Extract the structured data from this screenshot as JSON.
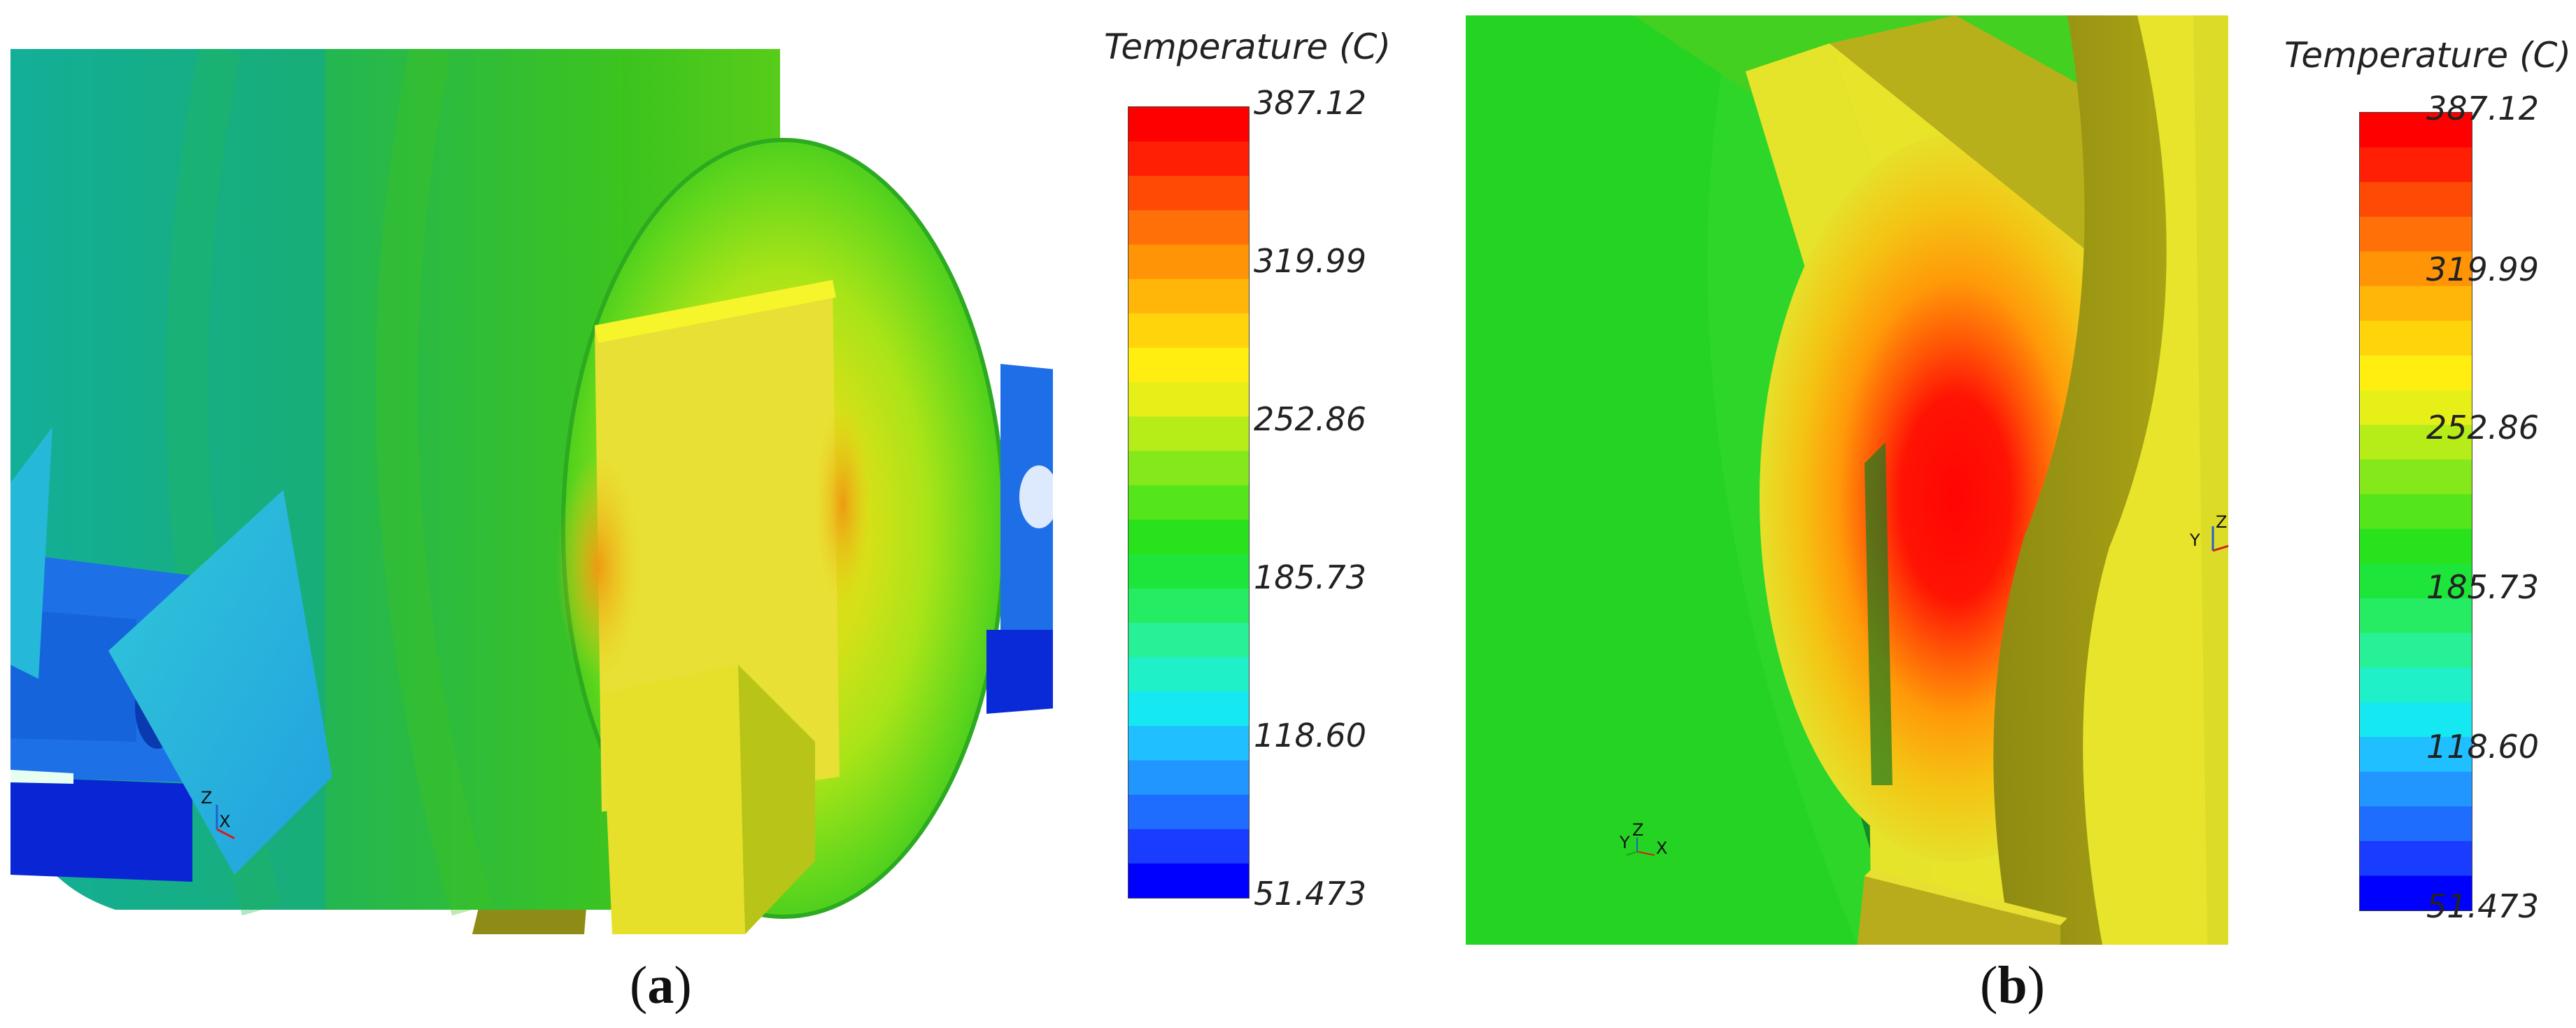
{
  "panels": [
    {
      "caption_letter": "a",
      "colorbar": {
        "title": "Temperature (C)",
        "ticks": [
          "387.12",
          "319.99",
          "252.86",
          "185.73",
          "118.60",
          "51.473"
        ]
      },
      "triad": {
        "x": "X",
        "z": "Z"
      }
    },
    {
      "caption_letter": "b",
      "colorbar": {
        "title": "Temperature (C)",
        "ticks": [
          "387.12",
          "319.99",
          "252.86",
          "185.73",
          "118.60",
          "51.473"
        ]
      },
      "triad": {
        "x": "X",
        "y": "Y",
        "z": "Z"
      }
    }
  ],
  "colormap": [
    "#0000ff",
    "#1a3cff",
    "#1f6dff",
    "#2196ff",
    "#20bfff",
    "#15e8f0",
    "#20f0c8",
    "#28f096",
    "#26ec64",
    "#1ee53a",
    "#28e31c",
    "#55e51b",
    "#85e81a",
    "#b6ec18",
    "#e6f018",
    "#ffee10",
    "#ffd40a",
    "#ffb608",
    "#ff9406",
    "#ff7008",
    "#ff4a06",
    "#ff1f04",
    "#ff0000"
  ]
}
